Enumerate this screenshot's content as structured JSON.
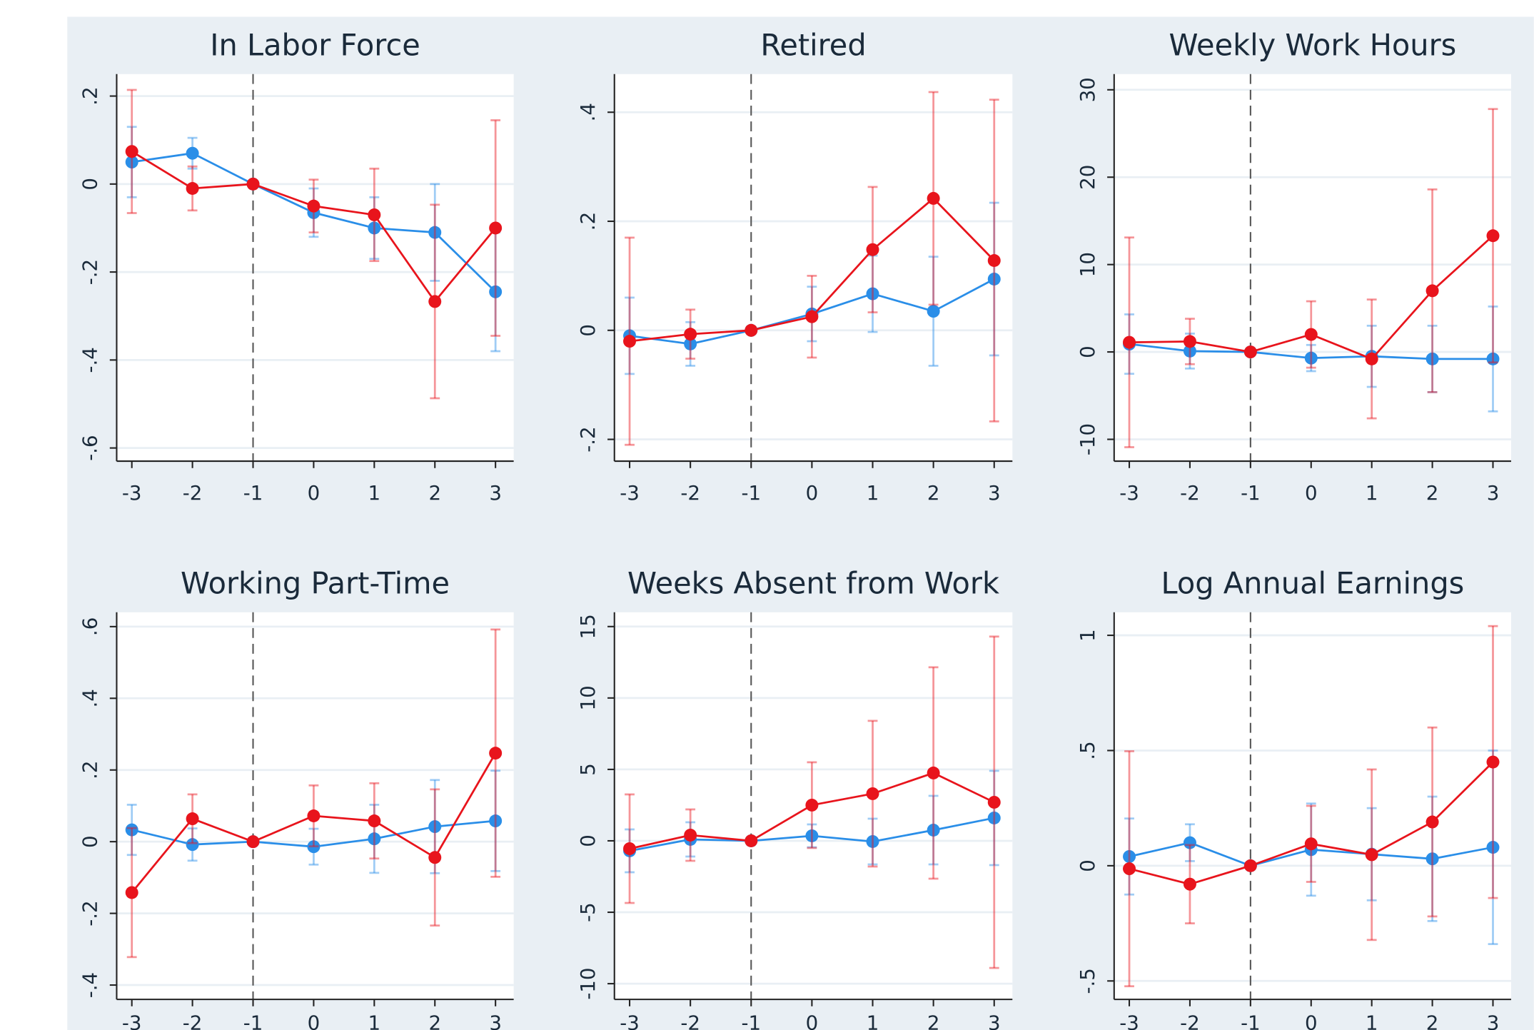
{
  "chart_data": [
    {
      "type": "line",
      "title": "In Labor Force",
      "grid": true,
      "reference_x": -1,
      "x": [
        -3,
        -2,
        -1,
        0,
        1,
        2,
        3
      ],
      "xlim": [
        -3.25,
        3.3
      ],
      "xticks": [
        -3,
        -2,
        -1,
        0,
        1,
        2,
        3
      ],
      "ylim": [
        -0.63,
        0.25
      ],
      "yticks": [
        {
          "value": -0.6,
          "label": "-.6"
        },
        {
          "value": -0.4,
          "label": "-.4"
        },
        {
          "value": -0.2,
          "label": "-.2"
        },
        0,
        {
          "value": 0.2,
          "label": ".2"
        }
      ],
      "series": [
        {
          "color": "#2a8ee8",
          "values": [
            0.05,
            0.07,
            0,
            -0.065,
            -0.1,
            -0.11,
            -0.245
          ],
          "errors": [
            0.08,
            0.035,
            0,
            0.055,
            0.07,
            0.11,
            0.135
          ]
        },
        {
          "color": "#e8141c",
          "values": [
            0.074,
            -0.01,
            0,
            -0.05,
            -0.07,
            -0.267,
            -0.1
          ],
          "errors": [
            0.14,
            0.05,
            0,
            0.06,
            0.105,
            0.22,
            0.245
          ]
        }
      ]
    },
    {
      "type": "line",
      "title": "Retired",
      "grid": true,
      "reference_x": -1,
      "x": [
        -3,
        -2,
        -1,
        0,
        1,
        2,
        3
      ],
      "xlim": [
        -3.25,
        3.3
      ],
      "xticks": [
        -3,
        -2,
        -1,
        0,
        1,
        2,
        3
      ],
      "ylim": [
        -0.24,
        0.47
      ],
      "yticks": [
        {
          "value": -0.2,
          "label": "-.2"
        },
        0,
        {
          "value": 0.2,
          "label": ".2"
        },
        {
          "value": 0.4,
          "label": ".4"
        }
      ],
      "series": [
        {
          "color": "#2a8ee8",
          "values": [
            -0.01,
            -0.025,
            0,
            0.03,
            0.067,
            0.035,
            0.094
          ],
          "errors": [
            0.07,
            0.04,
            0,
            0.05,
            0.07,
            0.1,
            0.14
          ]
        },
        {
          "color": "#e8141c",
          "values": [
            -0.02,
            -0.007,
            0,
            0.025,
            0.148,
            0.242,
            0.128
          ],
          "errors": [
            0.19,
            0.045,
            0,
            0.075,
            0.115,
            0.195,
            0.295
          ]
        }
      ]
    },
    {
      "type": "line",
      "title": "Weekly Work Hours",
      "grid": true,
      "reference_x": -1,
      "x": [
        -3,
        -2,
        -1,
        0,
        1,
        2,
        3
      ],
      "xlim": [
        -3.25,
        3.3
      ],
      "xticks": [
        -3,
        -2,
        -1,
        0,
        1,
        2,
        3
      ],
      "ylim": [
        -12.5,
        31.8
      ],
      "yticks": [
        -10,
        0,
        10,
        20,
        30
      ],
      "series": [
        {
          "color": "#2a8ee8",
          "values": [
            0.9,
            0.1,
            0,
            -0.7,
            -0.5,
            -0.8,
            -0.8
          ],
          "errors": [
            3.4,
            2,
            0,
            1.5,
            3.5,
            3.8,
            6
          ]
        },
        {
          "color": "#e8141c",
          "values": [
            1.1,
            1.2,
            0,
            2,
            -0.8,
            7,
            13.3
          ],
          "errors": [
            12,
            2.6,
            0,
            3.8,
            6.8,
            11.6,
            14.5
          ]
        }
      ]
    },
    {
      "type": "line",
      "title": "Working Part-Time",
      "grid": true,
      "reference_x": -1,
      "x": [
        -3,
        -2,
        -1,
        0,
        1,
        2,
        3
      ],
      "xlim": [
        -3.25,
        3.3
      ],
      "xticks": [
        -3,
        -2,
        -1,
        0,
        1,
        2,
        3
      ],
      "ylim": [
        -0.44,
        0.64
      ],
      "yticks": [
        {
          "value": -0.4,
          "label": "-.4"
        },
        {
          "value": -0.2,
          "label": "-.2"
        },
        0,
        {
          "value": 0.2,
          "label": ".2"
        },
        {
          "value": 0.4,
          "label": ".4"
        },
        {
          "value": 0.6,
          "label": ".6"
        }
      ],
      "series": [
        {
          "color": "#2a8ee8",
          "values": [
            0.033,
            -0.008,
            0,
            -0.014,
            0.008,
            0.042,
            0.058
          ],
          "errors": [
            0.07,
            0.045,
            0,
            0.05,
            0.095,
            0.13,
            0.14
          ]
        },
        {
          "color": "#e8141c",
          "values": [
            -0.142,
            0.064,
            0,
            0.072,
            0.058,
            -0.044,
            0.247
          ],
          "errors": [
            0.18,
            0.068,
            0,
            0.085,
            0.105,
            0.19,
            0.345
          ]
        }
      ]
    },
    {
      "type": "line",
      "title": "Weeks Absent from Work",
      "grid": true,
      "reference_x": -1,
      "x": [
        -3,
        -2,
        -1,
        0,
        1,
        2,
        3
      ],
      "xlim": [
        -3.25,
        3.3
      ],
      "xticks": [
        -3,
        -2,
        -1,
        0,
        1,
        2,
        3
      ],
      "ylim": [
        -11.1,
        16
      ],
      "yticks": [
        -10,
        -5,
        0,
        5,
        10,
        15
      ],
      "series": [
        {
          "color": "#2a8ee8",
          "values": [
            -0.7,
            0.1,
            0,
            0.35,
            -0.05,
            0.75,
            1.6
          ],
          "errors": [
            1.5,
            1.2,
            0,
            0.8,
            1.6,
            2.4,
            3.3
          ]
        },
        {
          "color": "#e8141c",
          "values": [
            -0.55,
            0.4,
            0,
            2.5,
            3.3,
            4.75,
            2.7
          ],
          "errors": [
            3.8,
            1.8,
            0,
            3,
            5.1,
            7.4,
            11.6
          ]
        }
      ]
    },
    {
      "type": "line",
      "title": "Log Annual Earnings",
      "grid": true,
      "reference_x": -1,
      "x": [
        -3,
        -2,
        -1,
        0,
        1,
        2,
        3
      ],
      "xlim": [
        -3.25,
        3.3
      ],
      "xticks": [
        -3,
        -2,
        -1,
        0,
        1,
        2,
        3
      ],
      "ylim": [
        -0.58,
        1.1
      ],
      "yticks": [
        {
          "value": -0.5,
          "label": "-.5"
        },
        0,
        {
          "value": 0.5,
          "label": ".5"
        },
        1
      ],
      "series": [
        {
          "color": "#2a8ee8",
          "values": [
            0.04,
            0.1,
            0,
            0.07,
            0.05,
            0.03,
            0.08
          ],
          "errors": [
            0.165,
            0.08,
            0,
            0.2,
            0.2,
            0.27,
            0.42
          ]
        },
        {
          "color": "#e8141c",
          "values": [
            -0.013,
            -0.08,
            0,
            0.095,
            0.048,
            0.19,
            0.45
          ],
          "errors": [
            0.51,
            0.17,
            0,
            0.165,
            0.37,
            0.41,
            0.59
          ]
        }
      ]
    }
  ]
}
